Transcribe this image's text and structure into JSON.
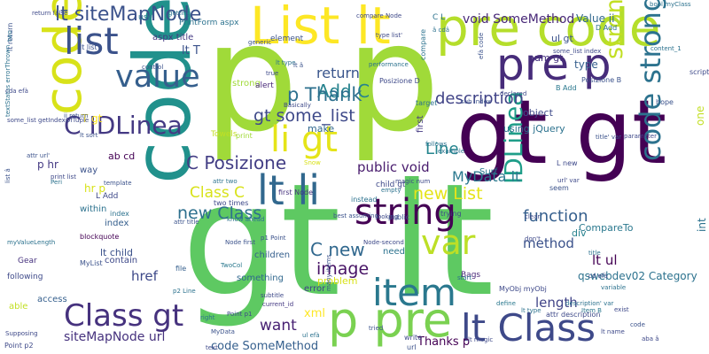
{
  "words": [
    {
      "text": "gt lt",
      "color": "#5ec962"
    },
    {
      "text": "p p",
      "color": "#a0da39"
    },
    {
      "text": "gt gt",
      "color": "#440154"
    },
    {
      "text": "code",
      "color": "#21918c"
    },
    {
      "text": "pre code",
      "color": "#b5de2b"
    },
    {
      "text": "code pre",
      "color": "#d8e219"
    },
    {
      "text": "List lt",
      "color": "#fde725"
    },
    {
      "text": "pre p",
      "color": "#472c7a"
    },
    {
      "text": "list",
      "color": "#3b528b"
    },
    {
      "text": "lt li",
      "color": "#31688e"
    },
    {
      "text": "string",
      "color": "#440154"
    },
    {
      "text": "value",
      "color": "#355f8d"
    },
    {
      "text": "li gt",
      "color": "#e5e419"
    },
    {
      "text": "item",
      "color": "#2a788e"
    },
    {
      "text": "Class gt",
      "color": "#46327e"
    },
    {
      "text": "lt Class",
      "color": "#3e4989"
    },
    {
      "text": "p pre",
      "color": "#7ad151"
    },
    {
      "text": "code strong",
      "color": "#2c728e"
    },
    {
      "text": "strong code",
      "color": "#c2df23"
    },
    {
      "text": "var",
      "color": "#bddf26"
    },
    {
      "text": "IDLinea",
      "color": "#1f9e89"
    },
    {
      "text": "C IDLinea",
      "color": "#443983"
    },
    {
      "text": "lt siteMapNode",
      "color": "#3b528b"
    },
    {
      "text": "void SomeMethod",
      "color": "#482878"
    },
    {
      "text": "Value ii",
      "color": "#31688e"
    },
    {
      "text": "Add C",
      "color": "#26828e"
    },
    {
      "text": "return",
      "color": "#39558c"
    },
    {
      "text": "p Thank",
      "color": "#2d708e"
    },
    {
      "text": "gt some_list",
      "color": "#3e4989"
    },
    {
      "text": "description",
      "color": "#404387"
    },
    {
      "text": "Line",
      "color": "#25858e"
    },
    {
      "text": "C Posizione",
      "color": "#433e85"
    },
    {
      "text": "public void",
      "color": "#481b6d"
    },
    {
      "text": "MyData lt",
      "color": "#2a788e"
    },
    {
      "text": "new List",
      "color": "#e5e419"
    },
    {
      "text": "Class C",
      "color": "#d8e219"
    },
    {
      "text": "new Class",
      "color": "#2d708e"
    },
    {
      "text": "function",
      "color": "#355f8d"
    },
    {
      "text": "method",
      "color": "#3b528b"
    },
    {
      "text": "lt ul",
      "color": "#440154"
    },
    {
      "text": "C new",
      "color": "#31688e"
    },
    {
      "text": "image",
      "color": "#471365"
    },
    {
      "text": "href",
      "color": "#3e4989"
    },
    {
      "text": "want",
      "color": "#482173"
    },
    {
      "text": "xml",
      "color": "#fde725"
    },
    {
      "text": "siteMapNode url",
      "color": "#46327e"
    },
    {
      "text": "code SomeMethod",
      "color": "#355f8d"
    },
    {
      "text": "length",
      "color": "#404387"
    },
    {
      "text": "qswebdev02 Category",
      "color": "#2c728e"
    },
    {
      "text": "CompareTo",
      "color": "#2a788e"
    },
    {
      "text": "Thanks p",
      "color": "#440154"
    },
    {
      "text": "lt T",
      "color": "#3b528b"
    },
    {
      "text": "T gt",
      "color": "#fde725"
    },
    {
      "text": "p hr",
      "color": "#443983"
    },
    {
      "text": "hr p",
      "color": "#d8e219"
    },
    {
      "text": "ab cd",
      "color": "#440154"
    },
    {
      "text": "strong",
      "color": "#a0da39"
    },
    {
      "text": "num gt",
      "color": "#46327e"
    },
    {
      "text": "ul gt",
      "color": "#3b528b"
    },
    {
      "text": "type",
      "color": "#355f8d"
    },
    {
      "text": "object",
      "color": "#3e4989"
    },
    {
      "text": "using jQuery",
      "color": "#2c728e"
    },
    {
      "text": "make",
      "color": "#31688e"
    },
    {
      "text": "div",
      "color": "#26828e"
    },
    {
      "text": "lt child",
      "color": "#3b528b"
    },
    {
      "text": "children",
      "color": "#355f8d"
    },
    {
      "text": "something",
      "color": "#31688e"
    },
    {
      "text": "error",
      "color": "#404387"
    },
    {
      "text": "way",
      "color": "#3b528b"
    },
    {
      "text": "index",
      "color": "#355f8d"
    },
    {
      "text": "contain",
      "color": "#3e4989"
    },
    {
      "text": "within",
      "color": "#2c728e"
    },
    {
      "text": "Surf",
      "color": "#2a788e"
    },
    {
      "text": "one",
      "color": "#c2df23"
    },
    {
      "text": "int",
      "color": "#2c728e"
    },
    {
      "text": "first",
      "color": "#443983"
    },
    {
      "text": "aspx title",
      "color": "#443983"
    },
    {
      "text": "PrintForm aspx",
      "color": "#2c728e"
    },
    {
      "text": "element",
      "color": "#3b528b"
    },
    {
      "text": "use",
      "color": "#2a788e"
    },
    {
      "text": "alert",
      "color": "#482878"
    },
    {
      "text": "problem",
      "color": "#d8e219"
    },
    {
      "text": "need",
      "color": "#2c728e"
    },
    {
      "text": "Bags",
      "color": "#482878"
    },
    {
      "text": "access",
      "color": "#355f8d"
    },
    {
      "text": "able",
      "color": "#c2df23"
    },
    {
      "text": "following",
      "color": "#3e4989"
    },
    {
      "text": "Gear",
      "color": "#46327e"
    },
    {
      "text": "MyList",
      "color": "#3b528b"
    },
    {
      "text": "file",
      "color": "#355f8d"
    },
    {
      "text": "compare",
      "color": "#2c728e"
    },
    {
      "text": "Posizione B",
      "color": "#3b528b"
    },
    {
      "text": "Posizione D",
      "color": "#3e4989"
    },
    {
      "text": "B Add",
      "color": "#2a788e"
    },
    {
      "text": "D Add",
      "color": "#2c728e"
    },
    {
      "text": "target",
      "color": "#2c728e"
    },
    {
      "text": "Towels",
      "color": "#c2df23"
    },
    {
      "text": "print",
      "color": "#a0da39"
    },
    {
      "text": "two times",
      "color": "#3e4989"
    },
    {
      "text": "first Node",
      "color": "#46327e"
    },
    {
      "text": "child gt",
      "color": "#3e4989"
    },
    {
      "text": "L Add",
      "color": "#3e4989"
    },
    {
      "text": "index",
      "color": "#2c728e"
    },
    {
      "text": "blockquote",
      "color": "#440154"
    },
    {
      "text": "C L",
      "color": "#2c728e"
    },
    {
      "text": "MyObj myObj",
      "color": "#3e4989"
    },
    {
      "text": "L new",
      "color": "#3e4989"
    },
    {
      "text": "lt list",
      "color": "#3b528b"
    },
    {
      "text": "script",
      "color": "#3e4989"
    },
    {
      "text": "content_1",
      "color": "#2c728e"
    },
    {
      "text": "lt return",
      "color": "#3b528b"
    },
    {
      "text": "print list",
      "color": "#3e4989"
    },
    {
      "text": "lt type",
      "color": "#2c728e"
    },
    {
      "text": "Item B",
      "color": "#2a788e"
    },
    {
      "text": "hope",
      "color": "#3b528b"
    },
    {
      "text": "Basically",
      "color": "#3e4989"
    },
    {
      "text": "performance",
      "color": "#2c728e"
    },
    {
      "text": "control",
      "color": "#3b528b"
    },
    {
      "text": "subtitle",
      "color": "#3e4989"
    },
    {
      "text": "current_id",
      "color": "#443983"
    },
    {
      "text": "Point p1",
      "color": "#3e4989"
    },
    {
      "text": "p2 Line",
      "color": "#2c728e"
    },
    {
      "text": "Node first",
      "color": "#3b528b"
    },
    {
      "text": "TwoCol",
      "color": "#2a788e"
    },
    {
      "text": "myValueLength",
      "color": "#2c728e"
    },
    {
      "text": "Supposing",
      "color": "#3e4989"
    },
    {
      "text": "right",
      "color": "#2c728e"
    },
    {
      "text": "text",
      "color": "#3e4989"
    },
    {
      "text": "seem",
      "color": "#3b528b"
    },
    {
      "text": "trying",
      "color": "#3e4989"
    },
    {
      "text": "instead",
      "color": "#2c728e"
    },
    {
      "text": "public",
      "color": "#3b528b"
    },
    {
      "text": "clear",
      "color": "#3e4989"
    },
    {
      "text": "variable",
      "color": "#2c728e"
    },
    {
      "text": "exist",
      "color": "#3e4989"
    },
    {
      "text": "tried",
      "color": "#3b528b"
    },
    {
      "text": "start",
      "color": "#2c728e"
    },
    {
      "text": "write",
      "color": "#3e4989"
    },
    {
      "text": "url",
      "color": "#3b528b"
    },
    {
      "text": "define",
      "color": "#2a788e"
    },
    {
      "text": "lt magic",
      "color": "#3e4989"
    },
    {
      "text": "lt type",
      "color": "#2c728e"
    },
    {
      "text": "Node-second",
      "color": "#3e4989"
    },
    {
      "text": "know ahead",
      "color": "#2c728e"
    },
    {
      "text": "template",
      "color": "#3b528b"
    },
    {
      "text": "magic num",
      "color": "#3e4989"
    },
    {
      "text": "attr two",
      "color": "#2c728e"
    },
    {
      "text": "declared",
      "color": "#3e4989"
    },
    {
      "text": "sub index",
      "color": "#3b528b"
    },
    {
      "text": "some_list index",
      "color": "#3e4989"
    },
    {
      "text": "follows",
      "color": "#2c728e"
    },
    {
      "text": "parameter",
      "color": "#3e4989"
    },
    {
      "text": "title' var",
      "color": "#3b528b"
    },
    {
      "text": "example",
      "color": "#2c728e"
    },
    {
      "text": "url' var",
      "color": "#3e4989"
    },
    {
      "text": "lt sort",
      "color": "#3b528b"
    },
    {
      "text": "type list'",
      "color": "#3e4989"
    },
    {
      "text": "generic",
      "color": "#3b528b"
    },
    {
      "text": "getting",
      "color": "#2c728e"
    },
    {
      "text": "lt name",
      "color": "#3e4989"
    },
    {
      "text": "description' var",
      "color": "#2c728e"
    },
    {
      "text": "code",
      "color": "#3b528b"
    },
    {
      "text": "attr description",
      "color": "#3e4989"
    },
    {
      "text": "efà code",
      "color": "#3b528b"
    },
    {
      "text": "bool myClass",
      "color": "#2c728e"
    },
    {
      "text": "cda efà",
      "color": "#3e4989"
    },
    {
      "text": "attr url'",
      "color": "#3b528b"
    },
    {
      "text": "textStatus errorThrown",
      "color": "#2c728e"
    },
    {
      "text": "some_list getIndexOfTuple",
      "color": "#3e4989"
    },
    {
      "text": "list â",
      "color": "#3b528b"
    },
    {
      "text": "Point p2",
      "color": "#3e4989"
    },
    {
      "text": "ul efà",
      "color": "#2c728e"
    },
    {
      "text": "many items",
      "color": "#3b528b"
    },
    {
      "text": "compare Node",
      "color": "#3e4989"
    },
    {
      "text": "p1 Point",
      "color": "#3b528b"
    },
    {
      "text": "two",
      "color": "#2c728e"
    },
    {
      "text": "return false",
      "color": "#3e4989"
    },
    {
      "text": "ii return",
      "color": "#3b528b"
    },
    {
      "text": "Snow",
      "color": "#d8e219"
    },
    {
      "text": "looking",
      "color": "#3e4989"
    },
    {
      "text": "best assuming",
      "color": "#3b528b"
    },
    {
      "text": "empty",
      "color": "#2c728e"
    },
    {
      "text": "true",
      "color": "#3e4989"
    },
    {
      "text": "lt â",
      "color": "#3b528b"
    },
    {
      "text": "â cdâ",
      "color": "#2c728e"
    },
    {
      "text": "don't",
      "color": "#3e4989"
    },
    {
      "text": "MyData",
      "color": "#3b528b"
    },
    {
      "text": "title",
      "color": "#2c728e"
    },
    {
      "text": "aba â",
      "color": "#3e4989"
    },
    {
      "text": "attr title",
      "color": "#3b528b"
    },
    {
      "text": "Peri",
      "color": "#2c728e"
    },
    {
      "text": "cd efà",
      "color": "#3e4989"
    },
    {
      "text": "â",
      "color": "#3b528b"
    }
  ]
}
